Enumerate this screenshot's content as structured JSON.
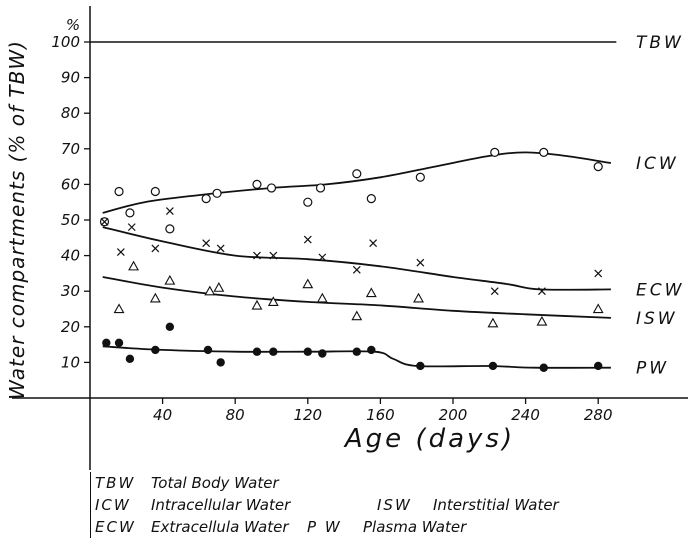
{
  "chart_data": {
    "type": "scatter",
    "percent_symbol": "%",
    "ylabel": "Water compartments (% of TBW)",
    "xlabel": "Age (days)",
    "xlim": [
      0,
      295
    ],
    "ylim": [
      0,
      105
    ],
    "xticks": [
      40,
      80,
      120,
      160,
      200,
      240,
      280
    ],
    "yticks": [
      10,
      20,
      30,
      40,
      50,
      60,
      70,
      80,
      90,
      100
    ],
    "series": [
      {
        "name": "TBW",
        "marker": "none",
        "curve": [
          [
            0,
            100
          ],
          [
            290,
            100
          ]
        ],
        "points": []
      },
      {
        "name": "ICW",
        "marker": "circle",
        "curve": [
          [
            7,
            52
          ],
          [
            30,
            55
          ],
          [
            60,
            57
          ],
          [
            100,
            59
          ],
          [
            130,
            60
          ],
          [
            160,
            62
          ],
          [
            190,
            65
          ],
          [
            220,
            68
          ],
          [
            240,
            69
          ],
          [
            262,
            68
          ],
          [
            287,
            66
          ]
        ],
        "points": [
          [
            8,
            49.5
          ],
          [
            16,
            58
          ],
          [
            22,
            52
          ],
          [
            36,
            58
          ],
          [
            44,
            47.5
          ],
          [
            64,
            56
          ],
          [
            70,
            57.5
          ],
          [
            92,
            60
          ],
          [
            100,
            59
          ],
          [
            120,
            55
          ],
          [
            127,
            59
          ],
          [
            147,
            63
          ],
          [
            155,
            56
          ],
          [
            182,
            62
          ],
          [
            223,
            69
          ],
          [
            250,
            69
          ],
          [
            280,
            65
          ]
        ]
      },
      {
        "name": "ECW",
        "marker": "cross",
        "curve": [
          [
            7,
            48
          ],
          [
            40,
            44
          ],
          [
            80,
            40
          ],
          [
            120,
            39
          ],
          [
            160,
            37
          ],
          [
            200,
            34
          ],
          [
            230,
            32
          ],
          [
            248,
            30.5
          ],
          [
            287,
            30.5
          ]
        ],
        "points": [
          [
            8,
            49.5
          ],
          [
            17,
            41
          ],
          [
            23,
            48
          ],
          [
            36,
            42
          ],
          [
            44,
            52.5
          ],
          [
            64,
            43.5
          ],
          [
            72,
            42
          ],
          [
            92,
            40
          ],
          [
            101,
            40
          ],
          [
            120,
            44.5
          ],
          [
            128,
            39.5
          ],
          [
            147,
            36
          ],
          [
            156,
            43.5
          ],
          [
            182,
            38
          ],
          [
            223,
            30
          ],
          [
            249,
            30
          ],
          [
            280,
            35
          ]
        ]
      },
      {
        "name": "ISW",
        "marker": "triangle",
        "curve": [
          [
            7,
            34
          ],
          [
            40,
            31
          ],
          [
            80,
            28.5
          ],
          [
            120,
            27
          ],
          [
            160,
            26
          ],
          [
            200,
            24.5
          ],
          [
            240,
            23.5
          ],
          [
            287,
            22.5
          ]
        ],
        "points": [
          [
            16,
            25
          ],
          [
            24,
            37
          ],
          [
            36,
            28
          ],
          [
            44,
            33
          ],
          [
            66,
            30
          ],
          [
            71,
            31
          ],
          [
            92,
            26
          ],
          [
            101,
            27
          ],
          [
            120,
            32
          ],
          [
            128,
            28
          ],
          [
            147,
            23
          ],
          [
            155,
            29.5
          ],
          [
            181,
            28
          ],
          [
            222,
            21
          ],
          [
            249,
            21.5
          ],
          [
            280,
            25
          ]
        ]
      },
      {
        "name": "PW",
        "marker": "filled-circle",
        "curve": [
          [
            7,
            14.5
          ],
          [
            40,
            13.5
          ],
          [
            80,
            13
          ],
          [
            120,
            13
          ],
          [
            157,
            13
          ],
          [
            167,
            11
          ],
          [
            180,
            9
          ],
          [
            220,
            9
          ],
          [
            245,
            8.5
          ],
          [
            287,
            8.5
          ]
        ],
        "points": [
          [
            9,
            15.5
          ],
          [
            16,
            15.5
          ],
          [
            22,
            11
          ],
          [
            36,
            13.5
          ],
          [
            44,
            20
          ],
          [
            65,
            13.5
          ],
          [
            72,
            10
          ],
          [
            92,
            13
          ],
          [
            101,
            13
          ],
          [
            120,
            13
          ],
          [
            128,
            12.5
          ],
          [
            147,
            13
          ],
          [
            155,
            13.5
          ],
          [
            182,
            9
          ],
          [
            222,
            9
          ],
          [
            250,
            8.5
          ],
          [
            280,
            9
          ]
        ]
      }
    ]
  },
  "legend": {
    "rows": [
      [
        {
          "abbr": "TBW",
          "full": "Total Body Water"
        }
      ],
      [
        {
          "abbr": "ICW",
          "full": "Intracellular Water"
        },
        {
          "abbr": "ISW",
          "full": "Interstitial Water"
        }
      ],
      [
        {
          "abbr": "ECW",
          "full": "Extracellula Water"
        },
        {
          "abbr": "P W",
          "full": "Plasma Water"
        }
      ]
    ]
  }
}
